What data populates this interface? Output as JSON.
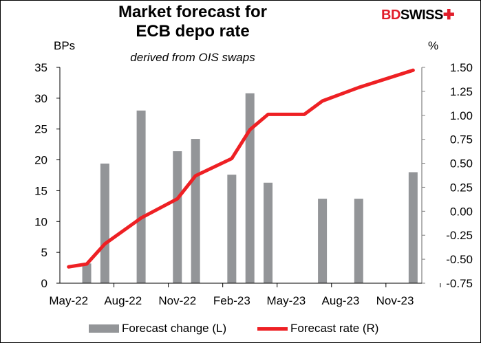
{
  "chart_data": {
    "type": "bar+line",
    "title": "Market forecast for ECB depo  rate",
    "title_lines": [
      "Market forecast for",
      "ECB depo  rate"
    ],
    "subtitle": "derived from OIS swaps",
    "ylabel_left": "BPs",
    "ylabel_right": "%",
    "ylim_left": [
      0,
      35
    ],
    "ylim_right": [
      -0.75,
      1.5
    ],
    "yticks_left": [
      "0",
      "5",
      "10",
      "15",
      "20",
      "25",
      "30",
      "35"
    ],
    "yticks_right": [
      "-0.75",
      "-0.50",
      "-0.25",
      "0.00",
      "0.25",
      "0.50",
      "0.75",
      "1.00",
      "1.25",
      "1.50"
    ],
    "x": [
      "May-22",
      "Jun-22",
      "Jul-22",
      "Aug-22",
      "Sep-22",
      "Oct-22",
      "Nov-22",
      "Dec-22",
      "Jan-23",
      "Feb-23",
      "Mar-23",
      "Apr-23",
      "May-23",
      "Jun-23",
      "Jul-23",
      "Aug-23",
      "Sep-23",
      "Oct-23",
      "Nov-23",
      "Dec-23"
    ],
    "xtick_labels": [
      "May-22",
      "Aug-22",
      "Nov-22",
      "Feb-23",
      "May-23",
      "Aug-23",
      "Nov-23"
    ],
    "grid": false,
    "legend_placement": "bottom",
    "series": [
      {
        "name": "Forecast change (L)",
        "type": "bar",
        "axis": "left",
        "color": "#939598",
        "values": [
          null,
          3.2,
          19.4,
          null,
          28.0,
          null,
          21.4,
          23.4,
          null,
          17.6,
          30.8,
          16.3,
          null,
          null,
          13.7,
          null,
          13.7,
          null,
          null,
          18.0
        ]
      },
      {
        "name": "Forecast rate (R)",
        "type": "line",
        "axis": "right",
        "color": "#ee2024",
        "values": [
          -0.58,
          -0.55,
          -0.34,
          null,
          -0.07,
          null,
          0.13,
          0.37,
          null,
          0.55,
          0.85,
          1.01,
          null,
          1.01,
          1.15,
          null,
          1.29,
          null,
          null,
          1.47
        ]
      }
    ]
  },
  "logo": {
    "text_red": "BD",
    "text_black": "SWISS"
  }
}
